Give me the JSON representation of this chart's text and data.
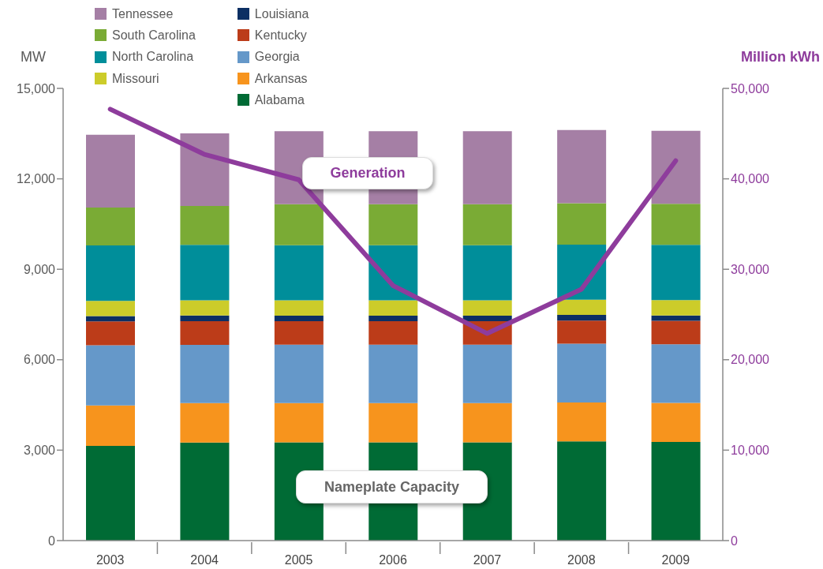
{
  "chart_data": {
    "type": "bar",
    "stacked": true,
    "categories": [
      "2003",
      "2004",
      "2005",
      "2006",
      "2007",
      "2008",
      "2009"
    ],
    "series": [
      {
        "name": "Alabama",
        "color": "#006b35",
        "values": [
          3140,
          3250,
          3260,
          3260,
          3260,
          3290,
          3270
        ]
      },
      {
        "name": "Arkansas",
        "color": "#f7941d",
        "values": [
          1340,
          1310,
          1300,
          1300,
          1300,
          1290,
          1300
        ]
      },
      {
        "name": "Georgia",
        "color": "#6598c9",
        "values": [
          2000,
          1930,
          1940,
          1940,
          1940,
          1950,
          1940
        ]
      },
      {
        "name": "Kentucky",
        "color": "#bc3c19",
        "values": [
          790,
          790,
          780,
          780,
          780,
          770,
          780
        ]
      },
      {
        "name": "Louisiana",
        "color": "#0c2f63",
        "values": [
          180,
          190,
          180,
          180,
          180,
          190,
          180
        ]
      },
      {
        "name": "Missouri",
        "color": "#cccc2a",
        "values": [
          500,
          500,
          510,
          510,
          510,
          500,
          510
        ]
      },
      {
        "name": "North Carolina",
        "color": "#008e9a",
        "values": [
          1840,
          1840,
          1830,
          1830,
          1830,
          1830,
          1830
        ]
      },
      {
        "name": "South Carolina",
        "color": "#7aab35",
        "values": [
          1260,
          1290,
          1360,
          1360,
          1360,
          1370,
          1360
        ]
      },
      {
        "name": "Tennessee",
        "color": "#a57fa5",
        "values": [
          2410,
          2410,
          2420,
          2420,
          2420,
          2430,
          2420
        ]
      },
      {
        "name": "Generation",
        "type": "line",
        "axis": "y2",
        "color": "#8e3c9c",
        "values": [
          47700,
          42700,
          39900,
          28200,
          22900,
          27800,
          42000
        ]
      }
    ],
    "ylabel": "MW",
    "y2label": "Million kWh",
    "ylim": [
      0,
      15000
    ],
    "yticks": [
      0,
      {
        "value": 3000,
        "label": "3,000"
      },
      {
        "value": 6000,
        "label": "6,000"
      },
      {
        "value": 9000,
        "label": "9,000"
      },
      {
        "value": 12000,
        "label": "12,000"
      },
      {
        "value": 15000,
        "label": "15,000"
      }
    ],
    "y2lim": [
      0,
      50000
    ],
    "y2ticks": [
      0,
      {
        "value": 10000,
        "label": "10,000"
      },
      {
        "value": 20000,
        "label": "20,000"
      },
      {
        "value": 30000,
        "label": "30,000"
      },
      {
        "value": 40000,
        "label": "40,000"
      },
      {
        "value": 50000,
        "label": "50,000"
      }
    ],
    "legend": "top left",
    "annotations": [
      "Nameplate Capacity"
    ]
  }
}
